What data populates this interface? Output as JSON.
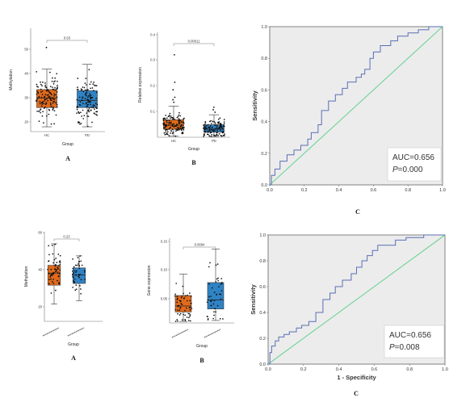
{
  "chart_data": [
    {
      "type": "box",
      "panel_label": "A",
      "xlabel": "Group",
      "ylabel": "Methylation",
      "yticks": [
        "20",
        "30",
        "40",
        "50"
      ],
      "ylim": [
        15,
        58
      ],
      "categories": [
        "HC",
        "PD"
      ],
      "colors": [
        "#e06a1c",
        "#2f83c5"
      ],
      "boxes": [
        {
          "q1": 25,
          "median": 29,
          "q3": 32.5,
          "whisker_low": 17,
          "whisker_high": 41
        },
        {
          "q1": 25,
          "median": 28,
          "q3": 32,
          "whisker_low": 17,
          "whisker_high": 43
        }
      ],
      "n_points": [
        130,
        120
      ],
      "outliers": [
        [
          50
        ],
        []
      ],
      "p_value": "0.63"
    },
    {
      "type": "box",
      "panel_label": "B",
      "xlabel": "Group",
      "ylabel": "Relative expression",
      "yticks": [
        "0.1",
        "0.2",
        "0.3",
        "0.4"
      ],
      "ylim": [
        0,
        0.42
      ],
      "categories": [
        "HC",
        "PD"
      ],
      "colors": [
        "#e06a1c",
        "#2f83c5"
      ],
      "boxes": [
        {
          "q1": 0.032,
          "median": 0.048,
          "q3": 0.07,
          "whisker_low": 0.004,
          "whisker_high": 0.125
        },
        {
          "q1": 0.02,
          "median": 0.032,
          "q3": 0.05,
          "whisker_low": 0.003,
          "whisker_high": 0.09
        }
      ],
      "n_points": [
        130,
        120
      ],
      "outliers": [
        [
          0.33,
          0.22,
          0.19,
          0.16,
          0.15,
          0.14
        ],
        [
          0.12,
          0.11,
          0.1
        ]
      ],
      "p_value": "0.00011"
    },
    {
      "type": "line",
      "panel_label": "C",
      "xlabel": "",
      "ylabel": "Sensitivity",
      "xlim": [
        0,
        1
      ],
      "ylim": [
        0,
        1
      ],
      "xticks": [
        "0.0",
        "0.2",
        "0.4",
        "0.6",
        "0.8",
        "1.0"
      ],
      "yticks": [
        "0.0",
        "0.2",
        "0.4",
        "0.6",
        "0.8",
        "1.0"
      ],
      "series": [
        {
          "x": [
            0,
            0.01,
            0.01,
            0.03,
            0.03,
            0.06,
            0.06,
            0.1,
            0.1,
            0.14,
            0.14,
            0.18,
            0.18,
            0.22,
            0.22,
            0.24,
            0.24,
            0.28,
            0.28,
            0.3,
            0.3,
            0.34,
            0.34,
            0.38,
            0.38,
            0.42,
            0.42,
            0.45,
            0.45,
            0.5,
            0.5,
            0.53,
            0.53,
            0.55,
            0.55,
            0.58,
            0.58,
            0.6,
            0.6,
            0.64,
            0.64,
            0.7,
            0.7,
            0.74,
            0.74,
            0.8,
            0.8,
            0.86,
            0.86,
            0.92,
            0.92,
            1.0
          ],
          "y": [
            0,
            0,
            0.06,
            0.06,
            0.1,
            0.1,
            0.15,
            0.15,
            0.19,
            0.19,
            0.22,
            0.22,
            0.25,
            0.25,
            0.29,
            0.29,
            0.33,
            0.33,
            0.38,
            0.38,
            0.47,
            0.47,
            0.53,
            0.53,
            0.57,
            0.57,
            0.61,
            0.61,
            0.65,
            0.65,
            0.68,
            0.68,
            0.7,
            0.7,
            0.73,
            0.73,
            0.8,
            0.8,
            0.84,
            0.84,
            0.88,
            0.88,
            0.91,
            0.91,
            0.94,
            0.94,
            0.96,
            0.96,
            0.98,
            0.98,
            1.0,
            1.0
          ]
        },
        {
          "x": [
            0,
            1
          ],
          "y": [
            0,
            1
          ]
        }
      ],
      "auc": "AUC=0.656",
      "p_value": "P=0.000"
    },
    {
      "type": "box",
      "panel_label": "A",
      "xlabel": "Group",
      "ylabel": "Methylation",
      "yticks": [
        "20",
        "40",
        "60"
      ],
      "ylim": [
        10,
        62
      ],
      "categories": [
        "",
        ""
      ],
      "colors": [
        "#e06a1c",
        "#2f83c5"
      ],
      "boxes": [
        {
          "q1": 31,
          "median": 38,
          "q3": 42.5,
          "whisker_low": 20,
          "whisker_high": 55
        },
        {
          "q1": 32,
          "median": 37,
          "q3": 41,
          "whisker_low": 22,
          "whisker_high": 48
        }
      ],
      "n_points": [
        60,
        45
      ],
      "outliers": [
        [],
        []
      ],
      "p_value": "0.23"
    },
    {
      "type": "box",
      "panel_label": "B",
      "xlabel": "Group",
      "ylabel": "Gene expression",
      "yticks": [
        "0.05",
        "0.10",
        "0.15"
      ],
      "ylim": [
        0,
        0.17
      ],
      "categories": [
        "",
        ""
      ],
      "colors": [
        "#e06a1c",
        "#2f83c5"
      ],
      "boxes": [
        {
          "q1": 0.022,
          "median": 0.034,
          "q3": 0.055,
          "whisker_low": 0.003,
          "whisker_high": 0.098
        },
        {
          "q1": 0.028,
          "median": 0.046,
          "q3": 0.081,
          "whisker_low": 0.005,
          "whisker_high": 0.148
        }
      ],
      "n_points": [
        60,
        45
      ],
      "outliers": [
        [],
        []
      ],
      "p_value": "0.0094"
    },
    {
      "type": "line",
      "panel_label": "C",
      "xlabel": "1 - Specificity",
      "ylabel": "Sensitivity",
      "xlim": [
        0,
        1
      ],
      "ylim": [
        0,
        1
      ],
      "xticks": [
        "0.0",
        "0.2",
        "0.4",
        "0.6",
        "0.8",
        "1.0"
      ],
      "yticks": [
        "0.0",
        "0.2",
        "0.4",
        "0.6",
        "0.8",
        "1.0"
      ],
      "series": [
        {
          "x": [
            0,
            0.01,
            0.01,
            0.02,
            0.02,
            0.04,
            0.04,
            0.06,
            0.06,
            0.09,
            0.09,
            0.12,
            0.12,
            0.16,
            0.16,
            0.19,
            0.19,
            0.23,
            0.23,
            0.27,
            0.27,
            0.31,
            0.31,
            0.35,
            0.35,
            0.38,
            0.38,
            0.42,
            0.42,
            0.47,
            0.47,
            0.5,
            0.5,
            0.53,
            0.53,
            0.56,
            0.56,
            0.59,
            0.59,
            0.62,
            0.62,
            0.72,
            0.72,
            0.78,
            0.78,
            0.88,
            0.88,
            1.0
          ],
          "y": [
            0,
            0,
            0.09,
            0.09,
            0.14,
            0.14,
            0.18,
            0.18,
            0.21,
            0.21,
            0.23,
            0.23,
            0.25,
            0.25,
            0.28,
            0.28,
            0.3,
            0.3,
            0.33,
            0.33,
            0.4,
            0.4,
            0.5,
            0.5,
            0.55,
            0.55,
            0.6,
            0.6,
            0.65,
            0.65,
            0.7,
            0.7,
            0.75,
            0.75,
            0.8,
            0.8,
            0.84,
            0.84,
            0.88,
            0.88,
            0.92,
            0.92,
            0.96,
            0.96,
            0.98,
            0.98,
            1.0,
            1.0
          ]
        },
        {
          "x": [
            0,
            1
          ],
          "y": [
            0,
            1
          ]
        }
      ],
      "auc": "AUC=0.656",
      "p_value": "P=0.008"
    }
  ]
}
